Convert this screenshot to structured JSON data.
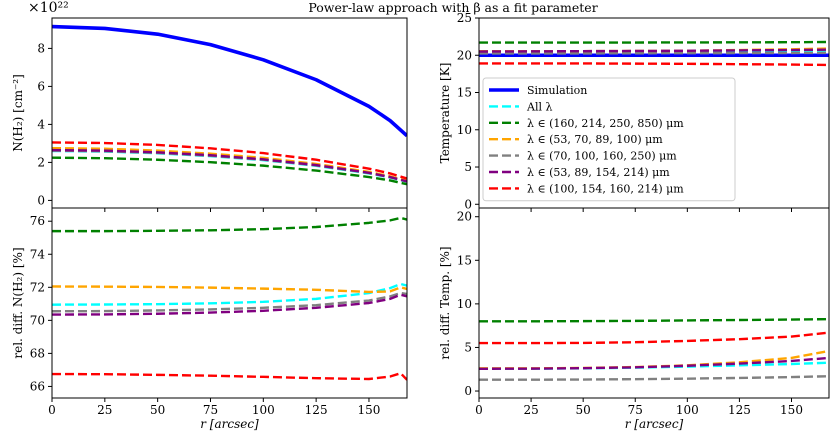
{
  "figure": {
    "title": "Power-law approach with β as a fit parameter"
  },
  "chart_data": [
    {
      "id": "top-left",
      "type": "line",
      "title": "",
      "xlabel": "",
      "ylabel": "N(H₂) [cm⁻²]",
      "y_multiplier": "×10²²",
      "xlim": [
        0,
        168
      ],
      "ylim": [
        -0.4,
        9.6
      ],
      "xticks": [
        0,
        25,
        50,
        75,
        100,
        125,
        150
      ],
      "yticks": [
        0,
        2,
        4,
        6,
        8
      ],
      "grid": false,
      "x": [
        0,
        25,
        50,
        75,
        100,
        125,
        150,
        160,
        168
      ],
      "series": [
        {
          "name": "Simulation",
          "color": "#0000ff",
          "style": "solid",
          "values": [
            9.15,
            9.05,
            8.75,
            8.2,
            7.4,
            6.35,
            4.95,
            4.2,
            3.4
          ]
        },
        {
          "name": "All λ",
          "color": "#00ffff",
          "style": "dashed",
          "values": [
            2.6,
            2.57,
            2.48,
            2.33,
            2.12,
            1.82,
            1.42,
            1.2,
            0.98
          ]
        },
        {
          "name": "λ ∈ (160, 214, 250, 850) μm",
          "color": "#008000",
          "style": "dashed",
          "values": [
            2.25,
            2.22,
            2.14,
            2.01,
            1.83,
            1.57,
            1.23,
            1.05,
            0.85
          ]
        },
        {
          "name": "λ ∈ (53, 70, 89, 100) μm",
          "color": "#ffa500",
          "style": "dashed",
          "values": [
            2.75,
            2.72,
            2.62,
            2.46,
            2.24,
            1.92,
            1.5,
            1.27,
            1.03
          ]
        },
        {
          "name": "λ ∈ (70, 100, 160, 250) μm",
          "color": "#808080",
          "style": "dashed",
          "values": [
            2.62,
            2.59,
            2.5,
            2.35,
            2.14,
            1.84,
            1.44,
            1.22,
            0.99
          ]
        },
        {
          "name": "λ ∈ (53, 89, 154, 214) μm",
          "color": "#800080",
          "style": "dashed",
          "values": [
            2.65,
            2.62,
            2.53,
            2.38,
            2.16,
            1.86,
            1.45,
            1.23,
            1.0
          ]
        },
        {
          "name": "λ ∈ (100, 154, 160, 214) μm",
          "color": "#ff0000",
          "style": "dashed",
          "values": [
            3.05,
            3.02,
            2.92,
            2.74,
            2.49,
            2.14,
            1.67,
            1.42,
            1.15
          ]
        }
      ]
    },
    {
      "id": "top-right",
      "type": "line",
      "title": "",
      "xlabel": "",
      "ylabel": "Temperature [K]",
      "xlim": [
        0,
        168
      ],
      "ylim": [
        -0.5,
        25
      ],
      "xticks": [
        0,
        25,
        50,
        75,
        100,
        125,
        150
      ],
      "yticks": [
        0,
        5,
        10,
        15,
        20,
        25
      ],
      "grid": false,
      "legend": "left",
      "x": [
        0,
        50,
        100,
        150,
        168
      ],
      "series": [
        {
          "name": "Simulation",
          "color": "#0000ff",
          "style": "solid",
          "values": [
            20,
            20,
            20,
            20,
            20
          ]
        },
        {
          "name": "All λ",
          "color": "#00ffff",
          "style": "dashed",
          "values": [
            20.5,
            20.5,
            20.55,
            20.6,
            20.62
          ]
        },
        {
          "name": "λ ∈ (160, 214, 250, 850) μm",
          "color": "#008000",
          "style": "dashed",
          "values": [
            21.7,
            21.7,
            21.72,
            21.75,
            21.78
          ]
        },
        {
          "name": "λ ∈ (53, 70, 89, 100) μm",
          "color": "#ffa500",
          "style": "dashed",
          "values": [
            20.55,
            20.55,
            20.6,
            20.8,
            20.9
          ]
        },
        {
          "name": "λ ∈ (70, 100, 160, 250) μm",
          "color": "#808080",
          "style": "dashed",
          "values": [
            20.25,
            20.25,
            20.28,
            20.3,
            20.32
          ]
        },
        {
          "name": "λ ∈ (53, 89, 154, 214) μm",
          "color": "#800080",
          "style": "dashed",
          "values": [
            20.5,
            20.55,
            20.6,
            20.7,
            20.75
          ]
        },
        {
          "name": "λ ∈ (100, 154, 160, 214) μm",
          "color": "#ff0000",
          "style": "dashed",
          "values": [
            18.9,
            18.9,
            18.85,
            18.75,
            18.7
          ]
        }
      ]
    },
    {
      "id": "bottom-left",
      "type": "line",
      "title": "",
      "xlabel": "r [arcsec]",
      "ylabel": "rel. diff. N(H₂) [%]",
      "xlim": [
        0,
        168
      ],
      "ylim": [
        65.3,
        76.8
      ],
      "xticks": [
        0,
        25,
        50,
        75,
        100,
        125,
        150
      ],
      "yticks": [
        66,
        68,
        70,
        72,
        74,
        76
      ],
      "grid": false,
      "x": [
        0,
        25,
        50,
        75,
        100,
        125,
        150,
        160,
        165,
        168
      ],
      "series": [
        {
          "name": "All λ",
          "color": "#00ffff",
          "style": "dashed",
          "values": [
            70.95,
            70.96,
            70.98,
            71.03,
            71.12,
            71.3,
            71.65,
            71.95,
            72.2,
            72.1
          ]
        },
        {
          "name": "λ ∈ (160, 214, 250, 850) μm",
          "color": "#008000",
          "style": "dashed",
          "values": [
            75.4,
            75.4,
            75.42,
            75.45,
            75.52,
            75.65,
            75.9,
            76.05,
            76.2,
            76.1
          ]
        },
        {
          "name": "λ ∈ (53, 70, 89, 100) μm",
          "color": "#ffa500",
          "style": "dashed",
          "values": [
            72.05,
            72.04,
            72.02,
            71.98,
            71.92,
            71.85,
            71.72,
            71.75,
            72.0,
            71.9
          ]
        },
        {
          "name": "λ ∈ (70, 100, 160, 250) μm",
          "color": "#808080",
          "style": "dashed",
          "values": [
            70.55,
            70.56,
            70.6,
            70.66,
            70.76,
            70.92,
            71.2,
            71.45,
            71.65,
            71.6
          ]
        },
        {
          "name": "λ ∈ (53, 89, 154, 214) μm",
          "color": "#800080",
          "style": "dashed",
          "values": [
            70.35,
            70.36,
            70.4,
            70.47,
            70.58,
            70.76,
            71.05,
            71.3,
            71.55,
            71.45
          ]
        },
        {
          "name": "λ ∈ (100, 154, 160, 214) μm",
          "color": "#ff0000",
          "style": "dashed",
          "values": [
            66.75,
            66.74,
            66.7,
            66.65,
            66.58,
            66.5,
            66.45,
            66.6,
            66.8,
            66.4
          ]
        }
      ]
    },
    {
      "id": "bottom-right",
      "type": "line",
      "title": "",
      "xlabel": "r [arcsec]",
      "ylabel": "rel. diff. Temp. [%]",
      "xlim": [
        0,
        168
      ],
      "ylim": [
        -0.8,
        21
      ],
      "xticks": [
        0,
        25,
        50,
        75,
        100,
        125,
        150
      ],
      "yticks": [
        0,
        5,
        10,
        15,
        20
      ],
      "grid": false,
      "x": [
        0,
        25,
        50,
        75,
        100,
        125,
        150,
        168
      ],
      "series": [
        {
          "name": "All λ",
          "color": "#00ffff",
          "style": "dashed",
          "values": [
            2.55,
            2.56,
            2.6,
            2.68,
            2.8,
            2.95,
            3.1,
            3.25
          ]
        },
        {
          "name": "λ ∈ (160, 214, 250, 850) μm",
          "color": "#008000",
          "style": "dashed",
          "values": [
            8.0,
            8.0,
            8.02,
            8.05,
            8.1,
            8.15,
            8.2,
            8.25
          ]
        },
        {
          "name": "λ ∈ (53, 70, 89, 100) μm",
          "color": "#ffa500",
          "style": "dashed",
          "values": [
            2.6,
            2.6,
            2.65,
            2.75,
            2.95,
            3.3,
            3.8,
            4.6
          ]
        },
        {
          "name": "λ ∈ (70, 100, 160, 250) μm",
          "color": "#808080",
          "style": "dashed",
          "values": [
            1.3,
            1.3,
            1.32,
            1.36,
            1.42,
            1.5,
            1.6,
            1.7
          ]
        },
        {
          "name": "λ ∈ (53, 89, 154, 214) μm",
          "color": "#800080",
          "style": "dashed",
          "values": [
            2.55,
            2.57,
            2.62,
            2.72,
            2.9,
            3.15,
            3.45,
            3.8
          ]
        },
        {
          "name": "λ ∈ (100, 154, 160, 214) μm",
          "color": "#ff0000",
          "style": "dashed",
          "values": [
            5.5,
            5.5,
            5.52,
            5.6,
            5.75,
            5.95,
            6.25,
            6.7
          ]
        }
      ]
    }
  ]
}
